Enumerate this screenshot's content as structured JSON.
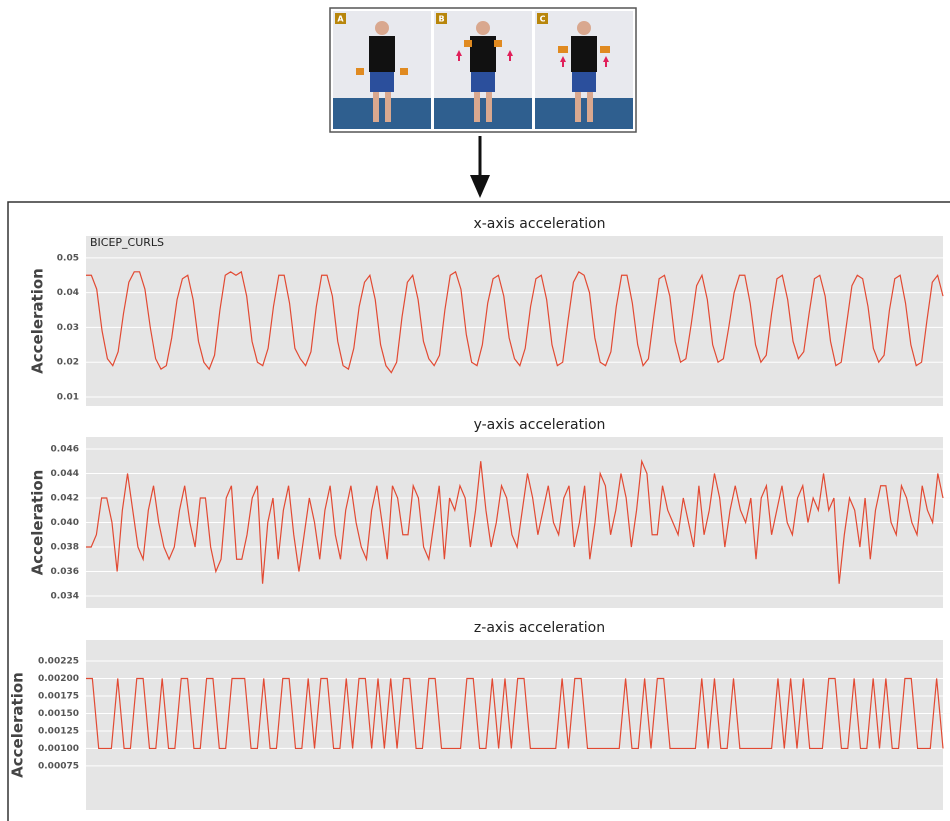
{
  "panel_labels": [
    "A",
    "B",
    "C"
  ],
  "chart_data": [
    {
      "type": "line",
      "title": "x-axis acceleration",
      "ylabel": "Acceleration",
      "annotation": "BICEP_CURLS",
      "color": "#e24a33",
      "grid": true,
      "ylim": [
        0.0074,
        0.0563
      ],
      "yticks": [
        0.01,
        0.02,
        0.03,
        0.04,
        0.05
      ],
      "values": [
        0.045,
        0.045,
        0.041,
        0.029,
        0.021,
        0.019,
        0.023,
        0.034,
        0.043,
        0.046,
        0.046,
        0.041,
        0.03,
        0.021,
        0.018,
        0.019,
        0.027,
        0.038,
        0.044,
        0.045,
        0.038,
        0.026,
        0.02,
        0.018,
        0.022,
        0.035,
        0.045,
        0.046,
        0.045,
        0.046,
        0.039,
        0.026,
        0.02,
        0.019,
        0.024,
        0.036,
        0.045,
        0.045,
        0.037,
        0.024,
        0.021,
        0.019,
        0.023,
        0.036,
        0.045,
        0.045,
        0.039,
        0.026,
        0.019,
        0.018,
        0.024,
        0.036,
        0.043,
        0.045,
        0.038,
        0.025,
        0.019,
        0.017,
        0.02,
        0.033,
        0.043,
        0.045,
        0.038,
        0.026,
        0.021,
        0.019,
        0.022,
        0.035,
        0.045,
        0.046,
        0.041,
        0.028,
        0.02,
        0.019,
        0.025,
        0.037,
        0.044,
        0.045,
        0.039,
        0.027,
        0.021,
        0.019,
        0.024,
        0.036,
        0.044,
        0.045,
        0.038,
        0.025,
        0.019,
        0.02,
        0.032,
        0.043,
        0.046,
        0.045,
        0.04,
        0.027,
        0.02,
        0.019,
        0.023,
        0.036,
        0.045,
        0.045,
        0.037,
        0.025,
        0.019,
        0.021,
        0.033,
        0.044,
        0.045,
        0.039,
        0.026,
        0.02,
        0.021,
        0.031,
        0.042,
        0.045,
        0.038,
        0.025,
        0.02,
        0.021,
        0.03,
        0.04,
        0.045,
        0.045,
        0.037,
        0.025,
        0.02,
        0.022,
        0.034,
        0.044,
        0.045,
        0.038,
        0.026,
        0.021,
        0.023,
        0.034,
        0.044,
        0.045,
        0.039,
        0.026,
        0.019,
        0.02,
        0.031,
        0.042,
        0.045,
        0.044,
        0.036,
        0.024,
        0.02,
        0.022,
        0.035,
        0.044,
        0.045,
        0.037,
        0.025,
        0.019,
        0.02,
        0.032,
        0.043,
        0.045,
        0.039
      ]
    },
    {
      "type": "line",
      "title": "y-axis acceleration",
      "ylabel": "Acceleration",
      "color": "#e24a33",
      "grid": true,
      "ylim": [
        0.03302,
        0.04698
      ],
      "yticks": [
        0.034,
        0.036,
        0.038,
        {
          "value": 0.04,
          "label": "0.040"
        },
        0.042,
        0.044,
        0.046
      ],
      "values": [
        0.038,
        0.038,
        0.039,
        0.042,
        0.042,
        0.04,
        0.036,
        0.041,
        0.044,
        0.041,
        0.038,
        0.037,
        0.041,
        0.043,
        0.04,
        0.038,
        0.037,
        0.038,
        0.041,
        0.043,
        0.04,
        0.038,
        0.042,
        0.042,
        0.038,
        0.036,
        0.037,
        0.042,
        0.043,
        0.037,
        0.037,
        0.039,
        0.042,
        0.043,
        0.035,
        0.04,
        0.042,
        0.037,
        0.041,
        0.043,
        0.039,
        0.036,
        0.039,
        0.042,
        0.04,
        0.037,
        0.041,
        0.043,
        0.039,
        0.037,
        0.041,
        0.043,
        0.04,
        0.038,
        0.037,
        0.041,
        0.043,
        0.04,
        0.037,
        0.043,
        0.042,
        0.039,
        0.039,
        0.043,
        0.042,
        0.038,
        0.037,
        0.04,
        0.043,
        0.037,
        0.042,
        0.041,
        0.043,
        0.042,
        0.038,
        0.041,
        0.045,
        0.041,
        0.038,
        0.04,
        0.043,
        0.042,
        0.039,
        0.038,
        0.041,
        0.044,
        0.042,
        0.039,
        0.041,
        0.043,
        0.04,
        0.039,
        0.042,
        0.043,
        0.038,
        0.04,
        0.043,
        0.037,
        0.04,
        0.044,
        0.043,
        0.039,
        0.041,
        0.044,
        0.042,
        0.038,
        0.041,
        0.045,
        0.044,
        0.039,
        0.039,
        0.043,
        0.041,
        0.04,
        0.039,
        0.042,
        0.04,
        0.038,
        0.043,
        0.039,
        0.041,
        0.044,
        0.042,
        0.038,
        0.041,
        0.043,
        0.041,
        0.04,
        0.042,
        0.037,
        0.042,
        0.043,
        0.039,
        0.041,
        0.043,
        0.04,
        0.039,
        0.042,
        0.043,
        0.04,
        0.042,
        0.041,
        0.044,
        0.041,
        0.042,
        0.035,
        0.039,
        0.042,
        0.041,
        0.038,
        0.042,
        0.037,
        0.041,
        0.043,
        0.043,
        0.04,
        0.039,
        0.043,
        0.042,
        0.04,
        0.039,
        0.043,
        0.041,
        0.04,
        0.044,
        0.042
      ]
    },
    {
      "type": "line",
      "title": "z-axis acceleration",
      "ylabel": "Acceleration",
      "color": "#e24a33",
      "grid": true,
      "ylim": [
        0.00012,
        0.00255
      ],
      "yticks": [
        0.00075,
        {
          "value": 0.001,
          "label": "0.00100"
        },
        0.00125,
        {
          "value": 0.0015,
          "label": "0.00150"
        },
        0.00175,
        {
          "value": 0.002,
          "label": "0.00200"
        },
        0.00225
      ],
      "values": [
        0.002,
        0.002,
        0.001,
        0.001,
        0.001,
        0.002,
        0.001,
        0.001,
        0.002,
        0.002,
        0.001,
        0.001,
        0.002,
        0.001,
        0.001,
        0.002,
        0.002,
        0.001,
        0.001,
        0.002,
        0.002,
        0.001,
        0.001,
        0.002,
        0.002,
        0.002,
        0.001,
        0.001,
        0.002,
        0.001,
        0.001,
        0.002,
        0.002,
        0.001,
        0.001,
        0.002,
        0.001,
        0.002,
        0.002,
        0.001,
        0.001,
        0.002,
        0.001,
        0.002,
        0.002,
        0.001,
        0.002,
        0.001,
        0.002,
        0.001,
        0.002,
        0.002,
        0.001,
        0.001,
        0.002,
        0.002,
        0.001,
        0.001,
        0.001,
        0.001,
        0.002,
        0.002,
        0.001,
        0.001,
        0.002,
        0.001,
        0.002,
        0.001,
        0.002,
        0.002,
        0.001,
        0.001,
        0.001,
        0.001,
        0.001,
        0.002,
        0.001,
        0.002,
        0.002,
        0.001,
        0.001,
        0.001,
        0.001,
        0.001,
        0.001,
        0.002,
        0.001,
        0.001,
        0.002,
        0.001,
        0.002,
        0.002,
        0.001,
        0.001,
        0.001,
        0.001,
        0.001,
        0.002,
        0.001,
        0.002,
        0.001,
        0.001,
        0.002,
        0.001,
        0.001,
        0.001,
        0.001,
        0.001,
        0.001,
        0.002,
        0.001,
        0.002,
        0.001,
        0.002,
        0.001,
        0.001,
        0.001,
        0.002,
        0.002,
        0.001,
        0.001,
        0.002,
        0.001,
        0.001,
        0.002,
        0.001,
        0.002,
        0.001,
        0.001,
        0.002,
        0.002,
        0.001,
        0.001,
        0.001,
        0.002,
        0.001
      ]
    }
  ]
}
